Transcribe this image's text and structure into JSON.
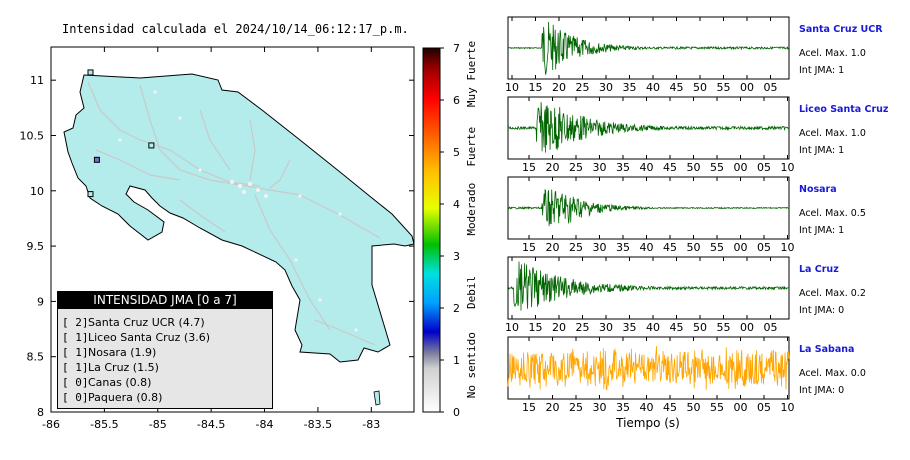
{
  "title": "Intensidad calculada el 2024/10/14_06:12:17_p.m.",
  "map": {
    "x_ticks": [
      "-86",
      "-85.5",
      "-85",
      "-84.5",
      "-84",
      "-83.5",
      "-83"
    ],
    "y_ticks": [
      "11",
      "10.5",
      "10",
      "9.5",
      "9",
      "8.5",
      "8"
    ],
    "land_color": "#b4ecec",
    "road_color": "#c9c9c9"
  },
  "colorbar": {
    "ticks": [
      "0",
      "1",
      "2",
      "3",
      "4",
      "5",
      "6",
      "7"
    ],
    "categories": [
      "No sentido",
      "Debil",
      "Moderado",
      "Fuerte",
      "Muy Fuerte"
    ]
  },
  "legend": {
    "heading": "INTENSIDAD JMA [0 a 7]",
    "items": [
      {
        "bracket": "[ 2]",
        "label": "Santa Cruz UCR (4.7)"
      },
      {
        "bracket": "[ 1]",
        "label": "Liceo Santa Cruz (3.6)"
      },
      {
        "bracket": "[ 1]",
        "label": "Nosara (1.9)"
      },
      {
        "bracket": "[ 1]",
        "label": "La Cruz (1.5)"
      },
      {
        "bracket": "[ 0]",
        "label": "Canas (0.8)"
      },
      {
        "bracket": "[ 0]",
        "label": "Paquera (0.8)"
      }
    ]
  },
  "traces": [
    {
      "name": "Santa Cruz UCR",
      "acc": "Acel. Max. 1.0",
      "int": "Int JMA: 1",
      "color": "#006400",
      "ticks": [
        "10",
        "15",
        "20",
        "25",
        "30",
        "35",
        "40",
        "45",
        "50",
        "55",
        "00",
        "05"
      ]
    },
    {
      "name": "Liceo Santa Cruz",
      "acc": "Acel. Max. 1.0",
      "int": "Int JMA: 1",
      "color": "#006400",
      "ticks": [
        "15",
        "20",
        "25",
        "30",
        "35",
        "40",
        "45",
        "50",
        "55",
        "00",
        "05",
        "10"
      ]
    },
    {
      "name": "Nosara",
      "acc": "Acel. Max. 0.5",
      "int": "Int JMA: 1",
      "color": "#006400",
      "ticks": [
        "15",
        "20",
        "25",
        "30",
        "35",
        "40",
        "45",
        "50",
        "55",
        "00",
        "05",
        "10"
      ]
    },
    {
      "name": "La Cruz",
      "acc": "Acel. Max. 0.2",
      "int": "Int JMA: 0",
      "color": "#006400",
      "ticks": [
        "10",
        "15",
        "20",
        "25",
        "30",
        "35",
        "40",
        "45",
        "50",
        "55",
        "00",
        "05"
      ]
    },
    {
      "name": "La Sabana",
      "acc": "Acel. Max. 0.0",
      "int": "Int JMA: 0",
      "color": "#ffa500",
      "ticks": [
        "15",
        "20",
        "25",
        "30",
        "35",
        "40",
        "45",
        "50",
        "55",
        "00",
        "05",
        "10"
      ]
    }
  ],
  "xlabel": "Tiempo (s)",
  "chart_data": [
    {
      "type": "heatmap",
      "title": "Intensidad calculada el 2024/10/14_06:12:17_p.m.",
      "xlim": [
        -86,
        -82.6
      ],
      "ylim": [
        8,
        11.3
      ],
      "colorbar_range": [
        0,
        7
      ],
      "station_points": [
        {
          "lon": -85.63,
          "lat": 11.07
        },
        {
          "lon": -85.57,
          "lat": 10.28
        },
        {
          "lon": -85.06,
          "lat": 10.41
        },
        {
          "lon": -85.63,
          "lat": 9.97
        }
      ]
    },
    {
      "type": "line",
      "xlabel": "Tiempo (s)",
      "series": [
        {
          "name": "Santa Cruz UCR",
          "peak_time_tick": "15",
          "relative_amplitude": 1.0
        },
        {
          "name": "Liceo Santa Cruz",
          "peak_time_tick": "20",
          "relative_amplitude": 1.0
        },
        {
          "name": "Nosara",
          "peak_time_tick": "20",
          "relative_amplitude": 0.5
        },
        {
          "name": "La Cruz",
          "peak_time_tick": "10",
          "relative_amplitude": 0.2
        },
        {
          "name": "La Sabana",
          "peak_time_tick": "",
          "relative_amplitude": 0.0
        }
      ]
    }
  ]
}
